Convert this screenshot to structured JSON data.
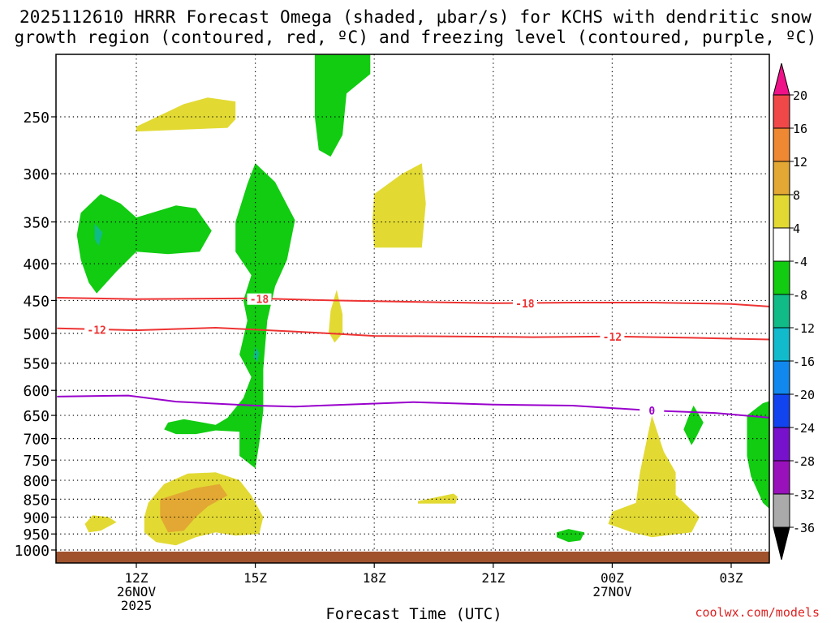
{
  "chart_data": {
    "type": "heatmap",
    "title_line1": "2025112610 HRRR Forecast Omega (shaded, μbar/s) for KCHS with dendritic snow",
    "title_line2": "growth region (contoured, red, ºC) and freezing level (contoured, purple, ºC)",
    "xlabel": "Forecast Time (UTC)",
    "ylabel": "",
    "credit": "coolwx.com/models",
    "x_range_hours": [
      10,
      28
    ],
    "y_range_mb": [
      200,
      1013
    ],
    "y_ticks": [
      250,
      300,
      350,
      400,
      450,
      500,
      550,
      600,
      650,
      700,
      750,
      800,
      850,
      900,
      950,
      1000
    ],
    "x_ticks": [
      {
        "h": 12,
        "label": "12Z",
        "date": "26NOV",
        "year": "2025"
      },
      {
        "h": 15,
        "label": "15Z",
        "date": "",
        "year": ""
      },
      {
        "h": 18,
        "label": "18Z",
        "date": "",
        "year": ""
      },
      {
        "h": 21,
        "label": "21Z",
        "date": "",
        "year": ""
      },
      {
        "h": 24,
        "label": "00Z",
        "date": "27NOV",
        "year": ""
      },
      {
        "h": 27,
        "label": "03Z",
        "date": "",
        "year": ""
      }
    ],
    "colorbar": {
      "labels": [
        "20",
        "16",
        "12",
        "8",
        "4",
        "-4",
        "-8",
        "-12",
        "-16",
        "-20",
        "-24",
        "-28",
        "-32",
        "-36"
      ],
      "colors": [
        "#f04848",
        "#ee8833",
        "#e2a833",
        "#e2da33",
        "#ffffff",
        "#11cc11",
        "#11bb88",
        "#11bbcc",
        "#1188ee",
        "#1144ee",
        "#7711cc",
        "#9911bb",
        "#aaaaaa"
      ],
      "top_arrow_color": "#ee1188",
      "bottom_arrow_color": "#000000"
    },
    "contours": [
      {
        "name": "-18",
        "color": "#ee3333",
        "points": [
          [
            10,
            446
          ],
          [
            12,
            448
          ],
          [
            15,
            447
          ],
          [
            17,
            450
          ],
          [
            19,
            452
          ],
          [
            21,
            454
          ],
          [
            23,
            453
          ],
          [
            25,
            453
          ],
          [
            27,
            455
          ],
          [
            28,
            459
          ]
        ],
        "labels": [
          {
            "h": 15.1,
            "p": 448
          },
          {
            "h": 21.8,
            "p": 454
          }
        ]
      },
      {
        "name": "-12",
        "color": "#ee3333",
        "points": [
          [
            10,
            492
          ],
          [
            12,
            495
          ],
          [
            14,
            491
          ],
          [
            16,
            497
          ],
          [
            18,
            504
          ],
          [
            20,
            505
          ],
          [
            22,
            506
          ],
          [
            24,
            505
          ],
          [
            26,
            507
          ],
          [
            28,
            510
          ]
        ],
        "labels": [
          {
            "h": 11.0,
            "p": 494
          },
          {
            "h": 24.0,
            "p": 505
          }
        ]
      },
      {
        "name": "0",
        "color": "#9900cc",
        "points": [
          [
            10,
            612
          ],
          [
            11.8,
            610
          ],
          [
            13,
            622
          ],
          [
            15,
            630
          ],
          [
            16,
            632
          ],
          [
            19,
            623
          ],
          [
            21,
            628
          ],
          [
            23,
            630
          ],
          [
            25,
            640
          ],
          [
            26.6,
            645
          ],
          [
            28,
            655
          ]
        ],
        "labels": [
          {
            "h": 25.0,
            "p": 640
          }
        ]
      }
    ],
    "shaded_regions": [
      {
        "value": "4 to 8",
        "color": "#e2da33",
        "points": [
          [
            12,
            258
          ],
          [
            13.2,
            240
          ],
          [
            13.8,
            235
          ],
          [
            14.5,
            238
          ],
          [
            14.5,
            252
          ],
          [
            14.3,
            259
          ],
          [
            12,
            262
          ]
        ]
      },
      {
        "value": "-4 to -8",
        "color": "#11cc11",
        "points": [
          [
            16.5,
            205
          ],
          [
            17.9,
            205
          ],
          [
            17.9,
            218
          ],
          [
            17.3,
            232
          ],
          [
            17.2,
            265
          ],
          [
            16.9,
            284
          ],
          [
            16.6,
            278
          ],
          [
            16.5,
            250
          ]
        ]
      },
      {
        "value": "-4 to -8",
        "color": "#11cc11",
        "points": [
          [
            10.6,
            340
          ],
          [
            11.1,
            320
          ],
          [
            11.6,
            330
          ],
          [
            12.0,
            345
          ],
          [
            13.0,
            332
          ],
          [
            13.5,
            335
          ],
          [
            13.9,
            360
          ],
          [
            13.6,
            385
          ],
          [
            12.8,
            388
          ],
          [
            12,
            385
          ],
          [
            11.5,
            410
          ],
          [
            11.0,
            440
          ],
          [
            10.8,
            425
          ],
          [
            10.6,
            395
          ],
          [
            10.5,
            365
          ]
        ]
      },
      {
        "value": "-8 to -12",
        "color": "#11bb88",
        "points": [
          [
            10.95,
            352
          ],
          [
            11.15,
            362
          ],
          [
            11.05,
            378
          ],
          [
            10.95,
            370
          ]
        ]
      },
      {
        "value": "4 to 8",
        "color": "#e2da33",
        "points": [
          [
            18.0,
            320
          ],
          [
            18.7,
            300
          ],
          [
            19.2,
            290
          ],
          [
            19.3,
            330
          ],
          [
            19.2,
            380
          ],
          [
            18.0,
            380
          ],
          [
            17.95,
            350
          ]
        ]
      },
      {
        "value": "-4 to -8",
        "color": "#11cc11",
        "points": [
          [
            15.0,
            290
          ],
          [
            15.5,
            308
          ],
          [
            16.0,
            348
          ],
          [
            15.8,
            395
          ],
          [
            15.5,
            430
          ],
          [
            15.3,
            480
          ],
          [
            15.2,
            560
          ],
          [
            15.2,
            640
          ],
          [
            15.1,
            710
          ],
          [
            15.0,
            770
          ],
          [
            14.6,
            740
          ],
          [
            14.6,
            685
          ],
          [
            14.0,
            682
          ],
          [
            13.5,
            690
          ],
          [
            13.0,
            690
          ],
          [
            12.7,
            680
          ],
          [
            12.8,
            665
          ],
          [
            13.2,
            658
          ],
          [
            14.0,
            670
          ],
          [
            14.3,
            655
          ],
          [
            14.7,
            615
          ],
          [
            14.9,
            575
          ],
          [
            14.6,
            535
          ],
          [
            14.8,
            480
          ],
          [
            14.7,
            450
          ],
          [
            14.9,
            415
          ],
          [
            14.5,
            385
          ],
          [
            14.5,
            350
          ],
          [
            14.8,
            310
          ]
        ]
      },
      {
        "value": "-8 to -12",
        "color": "#11bb88",
        "points": [
          [
            15.0,
            522
          ],
          [
            15.1,
            532
          ],
          [
            15.05,
            548
          ],
          [
            14.95,
            540
          ]
        ]
      },
      {
        "value": "4 to 8",
        "color": "#e2da33",
        "points": [
          [
            16.9,
            465
          ],
          [
            17.05,
            435
          ],
          [
            17.2,
            470
          ],
          [
            17.2,
            500
          ],
          [
            17.0,
            515
          ],
          [
            16.85,
            498
          ]
        ]
      },
      {
        "value": "-4 to -8",
        "color": "#11cc11",
        "points": [
          [
            25.9,
            658
          ],
          [
            26.05,
            630
          ],
          [
            26.2,
            650
          ],
          [
            26.3,
            665
          ],
          [
            26.1,
            700
          ],
          [
            26.0,
            715
          ],
          [
            25.8,
            680
          ]
        ]
      },
      {
        "value": "-4 to -8",
        "color": "#11cc11",
        "points": [
          [
            27.4,
            650
          ],
          [
            27.8,
            625
          ],
          [
            28.0,
            620
          ],
          [
            28.0,
            880
          ],
          [
            27.8,
            860
          ],
          [
            27.5,
            790
          ],
          [
            27.4,
            740
          ],
          [
            27.4,
            690
          ]
        ]
      },
      {
        "value": "4 to 8",
        "color": "#e2da33",
        "points": [
          [
            12.3,
            860
          ],
          [
            12.7,
            810
          ],
          [
            13.3,
            783
          ],
          [
            14.0,
            780
          ],
          [
            14.6,
            800
          ],
          [
            14.9,
            840
          ],
          [
            15.2,
            900
          ],
          [
            15.1,
            950
          ],
          [
            14.5,
            955
          ],
          [
            14.0,
            945
          ],
          [
            13.5,
            960
          ],
          [
            13.0,
            985
          ],
          [
            12.5,
            975
          ],
          [
            12.2,
            945
          ],
          [
            12.2,
            900
          ]
        ]
      },
      {
        "value": "8 to 12",
        "color": "#e2a833",
        "points": [
          [
            12.6,
            850
          ],
          [
            13.5,
            820
          ],
          [
            14.1,
            810
          ],
          [
            14.3,
            840
          ],
          [
            13.8,
            870
          ],
          [
            13.5,
            900
          ],
          [
            13.2,
            940
          ],
          [
            12.8,
            945
          ],
          [
            12.6,
            900
          ]
        ]
      },
      {
        "value": "4 to 8",
        "color": "#e2da33",
        "points": [
          [
            10.7,
            920
          ],
          [
            10.9,
            895
          ],
          [
            11.3,
            900
          ],
          [
            11.5,
            915
          ],
          [
            11.1,
            940
          ],
          [
            10.8,
            945
          ]
        ]
      },
      {
        "value": "4 to 8",
        "color": "#e2da33",
        "points": [
          [
            19.1,
            855
          ],
          [
            20.0,
            835
          ],
          [
            20.1,
            843
          ],
          [
            20.05,
            862
          ],
          [
            19.1,
            862
          ]
        ]
      },
      {
        "value": "4 to 8",
        "color": "#e2da33",
        "points": [
          [
            25.0,
            650
          ],
          [
            25.3,
            730
          ],
          [
            25.6,
            780
          ],
          [
            25.6,
            838
          ],
          [
            26.0,
            880
          ],
          [
            26.2,
            900
          ],
          [
            26.0,
            945
          ],
          [
            25.0,
            960
          ],
          [
            24.5,
            945
          ],
          [
            23.9,
            920
          ],
          [
            24.0,
            885
          ],
          [
            24.6,
            860
          ],
          [
            24.7,
            780
          ]
        ]
      },
      {
        "value": "-4 to -8",
        "color": "#11cc11",
        "points": [
          [
            22.6,
            945
          ],
          [
            22.9,
            935
          ],
          [
            23.3,
            945
          ],
          [
            23.2,
            970
          ],
          [
            22.9,
            975
          ],
          [
            22.6,
            960
          ]
        ]
      }
    ]
  }
}
